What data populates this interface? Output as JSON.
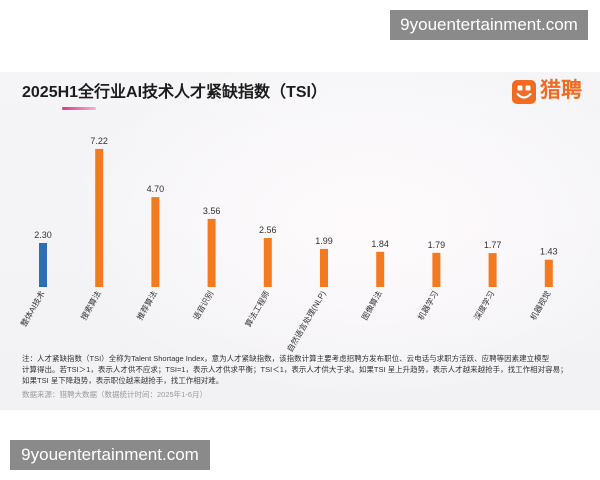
{
  "watermarks": {
    "top_right": "9youentertainment.com",
    "bottom_left": "9youentertainment.com"
  },
  "title_accent": {
    "colors": [
      "#d6378e",
      "#f6b4d1"
    ]
  },
  "brand": {
    "name": "猎聘",
    "icon": "liepin-logo-icon",
    "color": "#f26b22"
  },
  "chart_data": {
    "type": "bar",
    "title": "2025H1全行业AI技术人才紧缺指数（TSI）",
    "categories": [
      "整体AI技术",
      "搜索算法",
      "推荐算法",
      "语音识别",
      "算法工程师",
      "自然语言处理(NLP)",
      "图像算法",
      "机器学习",
      "深度学习",
      "机器视觉"
    ],
    "values": [
      2.3,
      7.22,
      4.7,
      3.56,
      2.56,
      1.99,
      1.84,
      1.79,
      1.77,
      1.43
    ],
    "data_labels": [
      "2.30",
      "7.22",
      "4.70",
      "3.56",
      "2.56",
      "1.99",
      "1.84",
      "1.79",
      "1.77",
      "1.43"
    ],
    "bar_colors": [
      "#2f6db5",
      "#f47a20",
      "#f47a20",
      "#f47a20",
      "#f47a20",
      "#f47a20",
      "#f47a20",
      "#f47a20",
      "#f47a20",
      "#f47a20"
    ],
    "axes_visible": false,
    "grid": false,
    "legend": "none"
  },
  "notes": {
    "lines": [
      "注：人才紧缺指数（TSI）全称为Talent Shortage Index，意为人才紧缺指数，该指数计算主要考虑招聘方发布职位、云电话与求职方活跃、应聘等因素建立模型",
      "计算得出。若TSI＞1，表示人才供不应求；TSI=1，表示人才供求平衡；TSI＜1，表示人才供大于求。如果TSI 呈上升趋势，表示人才越来越抢手，找工作相对容易；",
      "如果TSI 呈下降趋势，表示职位越来越抢手，找工作相对难。"
    ],
    "source": "数据来源：猎聘大数据（数据统计时间：2025年1-6月）"
  }
}
